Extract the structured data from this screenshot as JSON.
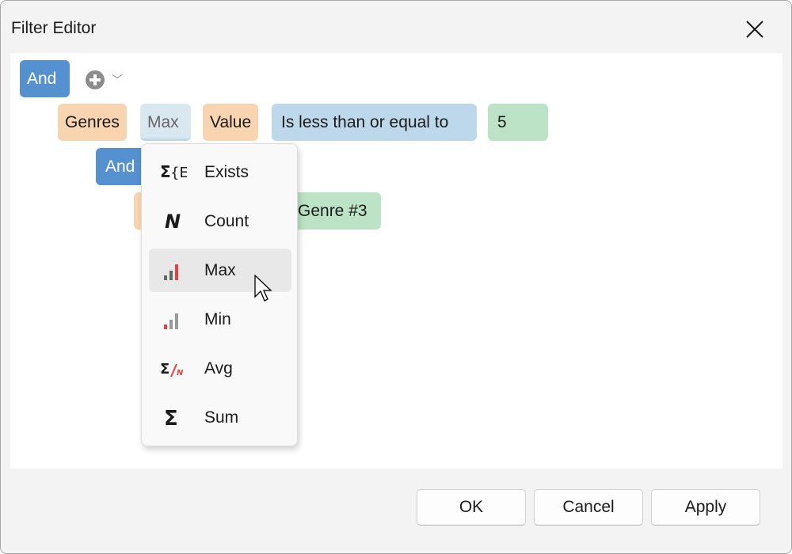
{
  "dialog": {
    "title": "Filter Editor",
    "close_icon": "close-icon"
  },
  "tree": {
    "root_group": "And",
    "add_icon": "plus-circle-icon",
    "condition": {
      "field": "Genres",
      "aggregate": "Max",
      "aggregate_field": "Value",
      "operator": "Is less than or equal to",
      "value": "5"
    },
    "nested_group": "And",
    "nested_value": "Genre #3"
  },
  "aggregate_menu": {
    "selected": "Max",
    "items": [
      {
        "label": "Exists",
        "icon": "exists-icon"
      },
      {
        "label": "Count",
        "icon": "count-icon"
      },
      {
        "label": "Max",
        "icon": "max-icon"
      },
      {
        "label": "Min",
        "icon": "min-icon"
      },
      {
        "label": "Avg",
        "icon": "avg-icon"
      },
      {
        "label": "Sum",
        "icon": "sum-icon"
      }
    ]
  },
  "buttons": {
    "ok": "OK",
    "cancel": "Cancel",
    "apply": "Apply"
  },
  "colors": {
    "group": "#5591cf",
    "field": "#f9d4b0",
    "operator": "#bcd8ea",
    "value": "#bde3c6",
    "accent_red": "#e84040"
  }
}
